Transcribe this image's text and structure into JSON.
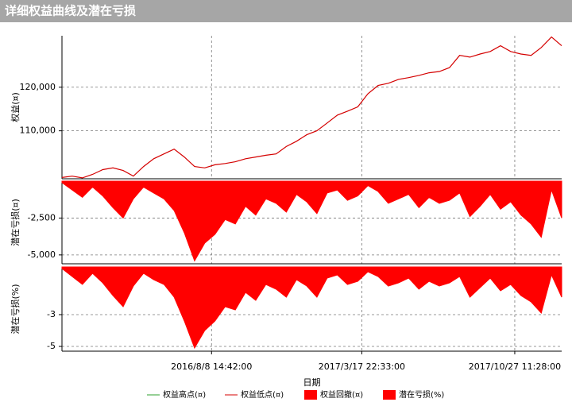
{
  "header": {
    "title": "详细权益曲线及潜在亏损"
  },
  "chart_data": [
    {
      "type": "line",
      "ylabel": "权益(¤)",
      "x": [
        0,
        15,
        30,
        45,
        60,
        75,
        90,
        105,
        120,
        135,
        150,
        165,
        180,
        195,
        210,
        225,
        240,
        255,
        270,
        285,
        300,
        315,
        330,
        345,
        360,
        375,
        390,
        405,
        420,
        435,
        450,
        465,
        480,
        495,
        510,
        525,
        540,
        555,
        570,
        585,
        600,
        615,
        630,
        645,
        660,
        675,
        690,
        705,
        720,
        735
      ],
      "series": [
        {
          "name": "权益低点(¤)",
          "color": "#d40000",
          "values": [
            99300,
            99600,
            99200,
            100000,
            101100,
            101500,
            100900,
            99600,
            101800,
            103600,
            104700,
            105800,
            104000,
            101800,
            101500,
            102200,
            102500,
            102900,
            103600,
            104000,
            104400,
            104700,
            106400,
            107600,
            109100,
            110000,
            111800,
            113600,
            114500,
            115500,
            118500,
            120400,
            120900,
            121800,
            122200,
            122700,
            123300,
            123600,
            124500,
            127300,
            126900,
            127600,
            128200,
            129500,
            128200,
            127600,
            127300,
            129100,
            131500,
            129500
          ]
        }
      ],
      "xlim": [
        0,
        735
      ],
      "xticks": [
        {
          "value": 220,
          "label": "2016/8/8 14:42:00"
        },
        {
          "value": 441,
          "label": "2017/3/17 22:33:00"
        },
        {
          "value": 666,
          "label": "2017/10/27 11:28:00"
        }
      ],
      "ylim": [
        99000,
        131800
      ],
      "yticks": [
        {
          "value": 110000,
          "label": "110,000"
        },
        {
          "value": 120000,
          "label": "120,000"
        }
      ],
      "grid": true
    },
    {
      "type": "area",
      "ylabel": "潜在亏损(¤)",
      "x": [
        0,
        15,
        30,
        45,
        60,
        75,
        90,
        105,
        120,
        135,
        150,
        165,
        180,
        195,
        210,
        225,
        240,
        255,
        270,
        285,
        300,
        315,
        330,
        345,
        360,
        375,
        390,
        405,
        420,
        435,
        450,
        465,
        480,
        495,
        510,
        525,
        540,
        555,
        570,
        585,
        600,
        615,
        630,
        645,
        660,
        675,
        690,
        705,
        720,
        735
      ],
      "series": [
        {
          "name": "权益回撤(¤)",
          "color": "#ff0000",
          "values": [
            -100,
            -600,
            -1100,
            -400,
            -1000,
            -1800,
            -2500,
            -1200,
            -400,
            -800,
            -1200,
            -2000,
            -3500,
            -5400,
            -4200,
            -3600,
            -2600,
            -2900,
            -1700,
            -2300,
            -1200,
            -1500,
            -2100,
            -900,
            -1400,
            -2200,
            -800,
            -600,
            -1300,
            -1000,
            -300,
            -700,
            -1500,
            -1200,
            -900,
            -1800,
            -1100,
            -1500,
            -1300,
            -800,
            -2400,
            -1700,
            -900,
            -1900,
            -1400,
            -2300,
            -2900,
            -3800,
            -600,
            -2500
          ]
        }
      ],
      "xlim": [
        0,
        735
      ],
      "xticks": [
        220,
        441,
        666
      ],
      "ylim": [
        -5600,
        0
      ],
      "yticks": [
        {
          "value": -2500,
          "label": "-2,500"
        },
        {
          "value": -5000,
          "label": "-5,000"
        }
      ],
      "grid": true
    },
    {
      "type": "area",
      "ylabel": "潜在亏损(%)",
      "xlabel": "日期",
      "x": [
        0,
        15,
        30,
        45,
        60,
        75,
        90,
        105,
        120,
        135,
        150,
        165,
        180,
        195,
        210,
        225,
        240,
        255,
        270,
        285,
        300,
        315,
        330,
        345,
        360,
        375,
        390,
        405,
        420,
        435,
        450,
        465,
        480,
        495,
        510,
        525,
        540,
        555,
        570,
        585,
        600,
        615,
        630,
        645,
        660,
        675,
        690,
        705,
        720,
        735
      ],
      "series": [
        {
          "name": "潜在亏损(%)",
          "color": "#ff0000",
          "values": [
            -0.1,
            -0.6,
            -1.1,
            -0.4,
            -1.0,
            -1.8,
            -2.5,
            -1.2,
            -0.4,
            -0.8,
            -1.1,
            -1.9,
            -3.4,
            -5.1,
            -4.0,
            -3.4,
            -2.5,
            -2.7,
            -1.6,
            -2.1,
            -1.1,
            -1.4,
            -1.9,
            -0.8,
            -1.2,
            -1.9,
            -0.7,
            -0.5,
            -1.1,
            -0.9,
            -0.3,
            -0.6,
            -1.2,
            -1.0,
            -0.7,
            -1.4,
            -0.9,
            -1.2,
            -1.0,
            -0.6,
            -1.9,
            -1.3,
            -0.7,
            -1.5,
            -1.1,
            -1.8,
            -2.2,
            -2.9,
            -0.5,
            -1.9
          ]
        }
      ],
      "xlim": [
        0,
        735
      ],
      "xticks": [
        {
          "value": 220,
          "label": "2016/8/8 14:42:00"
        },
        {
          "value": 441,
          "label": "2017/3/17 22:33:00"
        },
        {
          "value": 666,
          "label": "2017/10/27 11:28:00"
        }
      ],
      "ylim": [
        -5.3,
        0
      ],
      "yticks": [
        -3,
        -5
      ],
      "grid": true
    }
  ],
  "legend": [
    {
      "name": "权益高点(¤)",
      "color": "#2ca02c",
      "marker": "line"
    },
    {
      "name": "权益低点(¤)",
      "color": "#d40000",
      "marker": "line"
    },
    {
      "name": "权益回撤(¤)",
      "color": "#ff0000",
      "marker": "box"
    },
    {
      "name": "潜在亏损(%)",
      "color": "#ff0000",
      "marker": "box"
    }
  ]
}
